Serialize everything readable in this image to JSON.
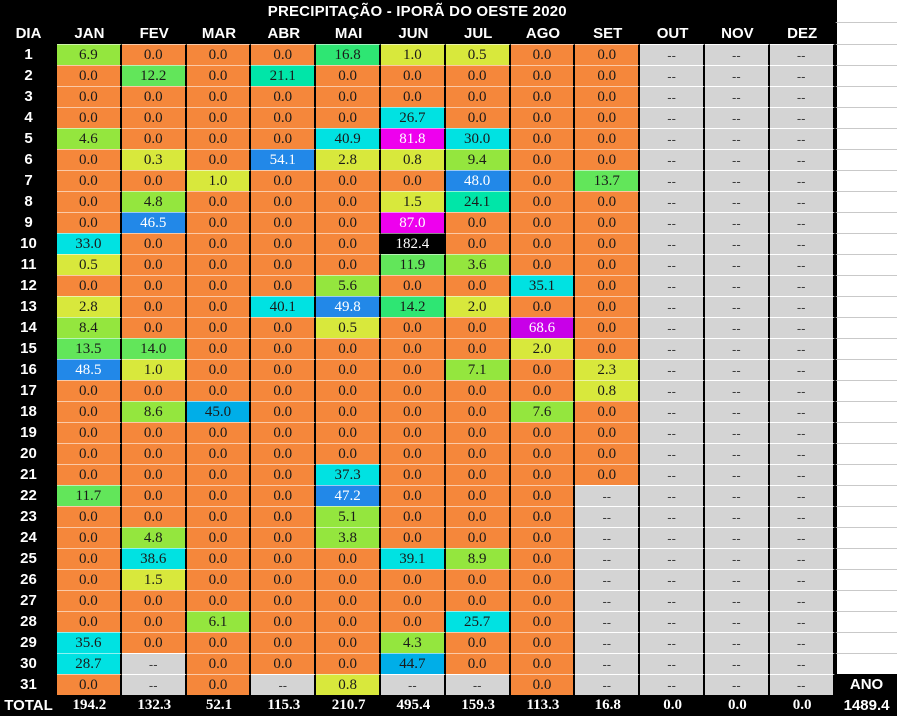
{
  "title": "PRECIPITAÇÃO - IPORÃ DO OESTE 2020",
  "columns": {
    "day_header": "DIA",
    "months": [
      "JAN",
      "FEV",
      "MAR",
      "ABR",
      "MAI",
      "JUN",
      "JUL",
      "AGO",
      "SET",
      "OUT",
      "NOV",
      "DEZ"
    ]
  },
  "days": [
    "1",
    "2",
    "3",
    "4",
    "5",
    "6",
    "7",
    "8",
    "9",
    "10",
    "11",
    "12",
    "13",
    "14",
    "15",
    "16",
    "17",
    "18",
    "19",
    "20",
    "21",
    "22",
    "23",
    "24",
    "25",
    "26",
    "27",
    "28",
    "29",
    "30",
    "31"
  ],
  "missing_marker": "--",
  "chart_data": {
    "type": "table",
    "title": "PRECIPITAÇÃO - IPORÃ DO OESTE 2020",
    "rows": [
      [
        "6.9",
        "0.0",
        "0.0",
        "0.0",
        "16.8",
        "1.0",
        "0.5",
        "0.0",
        "0.0",
        "--",
        "--",
        "--"
      ],
      [
        "0.0",
        "12.2",
        "0.0",
        "21.1",
        "0.0",
        "0.0",
        "0.0",
        "0.0",
        "0.0",
        "--",
        "--",
        "--"
      ],
      [
        "0.0",
        "0.0",
        "0.0",
        "0.0",
        "0.0",
        "0.0",
        "0.0",
        "0.0",
        "0.0",
        "--",
        "--",
        "--"
      ],
      [
        "0.0",
        "0.0",
        "0.0",
        "0.0",
        "0.0",
        "26.7",
        "0.0",
        "0.0",
        "0.0",
        "--",
        "--",
        "--"
      ],
      [
        "4.6",
        "0.0",
        "0.0",
        "0.0",
        "40.9",
        "81.8",
        "30.0",
        "0.0",
        "0.0",
        "--",
        "--",
        "--"
      ],
      [
        "0.0",
        "0.3",
        "0.0",
        "54.1",
        "2.8",
        "0.8",
        "9.4",
        "0.0",
        "0.0",
        "--",
        "--",
        "--"
      ],
      [
        "0.0",
        "0.0",
        "1.0",
        "0.0",
        "0.0",
        "0.0",
        "48.0",
        "0.0",
        "13.7",
        "--",
        "--",
        "--"
      ],
      [
        "0.0",
        "4.8",
        "0.0",
        "0.0",
        "0.0",
        "1.5",
        "24.1",
        "0.0",
        "0.0",
        "--",
        "--",
        "--"
      ],
      [
        "0.0",
        "46.5",
        "0.0",
        "0.0",
        "0.0",
        "87.0",
        "0.0",
        "0.0",
        "0.0",
        "--",
        "--",
        "--"
      ],
      [
        "33.0",
        "0.0",
        "0.0",
        "0.0",
        "0.0",
        "182.4",
        "0.0",
        "0.0",
        "0.0",
        "--",
        "--",
        "--"
      ],
      [
        "0.5",
        "0.0",
        "0.0",
        "0.0",
        "0.0",
        "11.9",
        "3.6",
        "0.0",
        "0.0",
        "--",
        "--",
        "--"
      ],
      [
        "0.0",
        "0.0",
        "0.0",
        "0.0",
        "5.6",
        "0.0",
        "0.0",
        "35.1",
        "0.0",
        "--",
        "--",
        "--"
      ],
      [
        "2.8",
        "0.0",
        "0.0",
        "40.1",
        "49.8",
        "14.2",
        "2.0",
        "0.0",
        "0.0",
        "--",
        "--",
        "--"
      ],
      [
        "8.4",
        "0.0",
        "0.0",
        "0.0",
        "0.5",
        "0.0",
        "0.0",
        "68.6",
        "0.0",
        "--",
        "--",
        "--"
      ],
      [
        "13.5",
        "14.0",
        "0.0",
        "0.0",
        "0.0",
        "0.0",
        "0.0",
        "2.0",
        "0.0",
        "--",
        "--",
        "--"
      ],
      [
        "48.5",
        "1.0",
        "0.0",
        "0.0",
        "0.0",
        "0.0",
        "7.1",
        "0.0",
        "2.3",
        "--",
        "--",
        "--"
      ],
      [
        "0.0",
        "0.0",
        "0.0",
        "0.0",
        "0.0",
        "0.0",
        "0.0",
        "0.0",
        "0.8",
        "--",
        "--",
        "--"
      ],
      [
        "0.0",
        "8.6",
        "45.0",
        "0.0",
        "0.0",
        "0.0",
        "0.0",
        "7.6",
        "0.0",
        "--",
        "--",
        "--"
      ],
      [
        "0.0",
        "0.0",
        "0.0",
        "0.0",
        "0.0",
        "0.0",
        "0.0",
        "0.0",
        "0.0",
        "--",
        "--",
        "--"
      ],
      [
        "0.0",
        "0.0",
        "0.0",
        "0.0",
        "0.0",
        "0.0",
        "0.0",
        "0.0",
        "0.0",
        "--",
        "--",
        "--"
      ],
      [
        "0.0",
        "0.0",
        "0.0",
        "0.0",
        "37.3",
        "0.0",
        "0.0",
        "0.0",
        "0.0",
        "--",
        "--",
        "--"
      ],
      [
        "11.7",
        "0.0",
        "0.0",
        "0.0",
        "47.2",
        "0.0",
        "0.0",
        "0.0",
        "--",
        "--",
        "--",
        "--"
      ],
      [
        "0.0",
        "0.0",
        "0.0",
        "0.0",
        "5.1",
        "0.0",
        "0.0",
        "0.0",
        "--",
        "--",
        "--",
        "--"
      ],
      [
        "0.0",
        "4.8",
        "0.0",
        "0.0",
        "3.8",
        "0.0",
        "0.0",
        "0.0",
        "--",
        "--",
        "--",
        "--"
      ],
      [
        "0.0",
        "38.6",
        "0.0",
        "0.0",
        "0.0",
        "39.1",
        "8.9",
        "0.0",
        "--",
        "--",
        "--",
        "--"
      ],
      [
        "0.0",
        "1.5",
        "0.0",
        "0.0",
        "0.0",
        "0.0",
        "0.0",
        "0.0",
        "--",
        "--",
        "--",
        "--"
      ],
      [
        "0.0",
        "0.0",
        "0.0",
        "0.0",
        "0.0",
        "0.0",
        "0.0",
        "0.0",
        "--",
        "--",
        "--",
        "--"
      ],
      [
        "0.0",
        "0.0",
        "6.1",
        "0.0",
        "0.0",
        "0.0",
        "25.7",
        "0.0",
        "--",
        "--",
        "--",
        "--"
      ],
      [
        "35.6",
        "0.0",
        "0.0",
        "0.0",
        "0.0",
        "4.3",
        "0.0",
        "0.0",
        "--",
        "--",
        "--",
        "--"
      ],
      [
        "28.7",
        "--",
        "0.0",
        "0.0",
        "0.0",
        "44.7",
        "0.0",
        "0.0",
        "--",
        "--",
        "--",
        "--"
      ],
      [
        "0.0",
        "--",
        "0.0",
        "--",
        "0.8",
        "--",
        "--",
        "0.0",
        "--",
        "--",
        "--",
        "--"
      ]
    ]
  },
  "totals": {
    "label": "TOTAL",
    "values": [
      "194.2",
      "132.3",
      "52.1",
      "115.3",
      "210.7",
      "495.4",
      "159.3",
      "113.3",
      "16.8",
      "0.0",
      "0.0",
      "0.0"
    ],
    "year_label": "ANO",
    "year_total": "1489.4"
  },
  "colors": {
    "zero_bg": "#F5873B",
    "missing_bg": "#D4D4D4",
    "header_bg": "#000000",
    "header_fg": "#FFFFFF",
    "scale": [
      {
        "max": 0.05,
        "bg": "#F5873B",
        "fg": "#1a1a1a"
      },
      {
        "max": 3,
        "bg": "#D8E83C",
        "fg": "#1a1a1a"
      },
      {
        "max": 10,
        "bg": "#94E63E",
        "fg": "#1a1a1a"
      },
      {
        "max": 14,
        "bg": "#62E65A",
        "fg": "#1a1a1a"
      },
      {
        "max": 20,
        "bg": "#2EE673",
        "fg": "#1a1a1a"
      },
      {
        "max": 25,
        "bg": "#00E6A8",
        "fg": "#1a1a1a"
      },
      {
        "max": 44,
        "bg": "#00E2E2",
        "fg": "#1a1a1a"
      },
      {
        "max": 46,
        "bg": "#00AEE8",
        "fg": "#1a1a1a"
      },
      {
        "max": 60,
        "bg": "#2288E8",
        "fg": "#FFFFFF"
      },
      {
        "max": 80,
        "bg": "#C800E8",
        "fg": "#FFFFFF"
      },
      {
        "max": 100,
        "bg": "#EE00EE",
        "fg": "#FFFFFF"
      },
      {
        "max": 99999,
        "bg": "#000000",
        "fg": "#FFFFFF"
      }
    ]
  }
}
